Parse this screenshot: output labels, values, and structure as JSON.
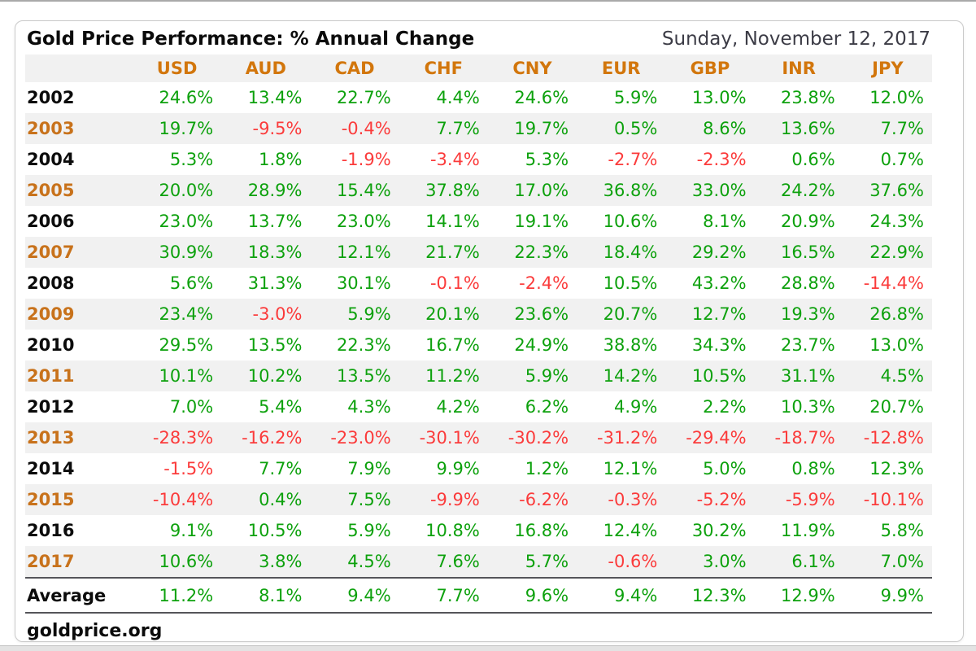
{
  "header": {
    "title": "Gold Price Performance: % Annual Change",
    "date": "Sunday, November 12, 2017"
  },
  "footer": {
    "source": "goldprice.org"
  },
  "colors": {
    "positive": "#0da10d",
    "negative": "#fb3b3b",
    "header_orange": "#d2760c",
    "year_orange": "#c8721b",
    "stripe": "#f1f1f1"
  },
  "chart_data": {
    "type": "table",
    "title": "Gold Price Performance: % Annual Change",
    "date": "Sunday, November 12, 2017",
    "source": "goldprice.org",
    "value_format": "percent_one_decimal",
    "columns": [
      "USD",
      "AUD",
      "CAD",
      "CHF",
      "CNY",
      "EUR",
      "GBP",
      "INR",
      "JPY"
    ],
    "rows": [
      {
        "year": "2002",
        "values": [
          24.6,
          13.4,
          22.7,
          4.4,
          24.6,
          5.9,
          13.0,
          23.8,
          12.0
        ]
      },
      {
        "year": "2003",
        "values": [
          19.7,
          -9.5,
          -0.4,
          7.7,
          19.7,
          0.5,
          8.6,
          13.6,
          7.7
        ]
      },
      {
        "year": "2004",
        "values": [
          5.3,
          1.8,
          -1.9,
          -3.4,
          5.3,
          -2.7,
          -2.3,
          0.6,
          0.7
        ]
      },
      {
        "year": "2005",
        "values": [
          20.0,
          28.9,
          15.4,
          37.8,
          17.0,
          36.8,
          33.0,
          24.2,
          37.6
        ]
      },
      {
        "year": "2006",
        "values": [
          23.0,
          13.7,
          23.0,
          14.1,
          19.1,
          10.6,
          8.1,
          20.9,
          24.3
        ]
      },
      {
        "year": "2007",
        "values": [
          30.9,
          18.3,
          12.1,
          21.7,
          22.3,
          18.4,
          29.2,
          16.5,
          22.9
        ]
      },
      {
        "year": "2008",
        "values": [
          5.6,
          31.3,
          30.1,
          -0.1,
          -2.4,
          10.5,
          43.2,
          28.8,
          -14.4
        ]
      },
      {
        "year": "2009",
        "values": [
          23.4,
          -3.0,
          5.9,
          20.1,
          23.6,
          20.7,
          12.7,
          19.3,
          26.8
        ]
      },
      {
        "year": "2010",
        "values": [
          29.5,
          13.5,
          22.3,
          16.7,
          24.9,
          38.8,
          34.3,
          23.7,
          13.0
        ]
      },
      {
        "year": "2011",
        "values": [
          10.1,
          10.2,
          13.5,
          11.2,
          5.9,
          14.2,
          10.5,
          31.1,
          4.5
        ]
      },
      {
        "year": "2012",
        "values": [
          7.0,
          5.4,
          4.3,
          4.2,
          6.2,
          4.9,
          2.2,
          10.3,
          20.7
        ]
      },
      {
        "year": "2013",
        "values": [
          -28.3,
          -16.2,
          -23.0,
          -30.1,
          -30.2,
          -31.2,
          -29.4,
          -18.7,
          -12.8
        ]
      },
      {
        "year": "2014",
        "values": [
          -1.5,
          7.7,
          7.9,
          9.9,
          1.2,
          12.1,
          5.0,
          0.8,
          12.3
        ]
      },
      {
        "year": "2015",
        "values": [
          -10.4,
          0.4,
          7.5,
          -9.9,
          -6.2,
          -0.3,
          -5.2,
          -5.9,
          -10.1
        ]
      },
      {
        "year": "2016",
        "values": [
          9.1,
          10.5,
          5.9,
          10.8,
          16.8,
          12.4,
          30.2,
          11.9,
          5.8
        ]
      },
      {
        "year": "2017",
        "values": [
          10.6,
          3.8,
          4.5,
          7.6,
          5.7,
          -0.6,
          3.0,
          6.1,
          7.0
        ]
      }
    ],
    "average": {
      "label": "Average",
      "values": [
        11.2,
        8.1,
        9.4,
        7.7,
        9.6,
        9.4,
        12.3,
        12.9,
        9.9
      ]
    }
  }
}
